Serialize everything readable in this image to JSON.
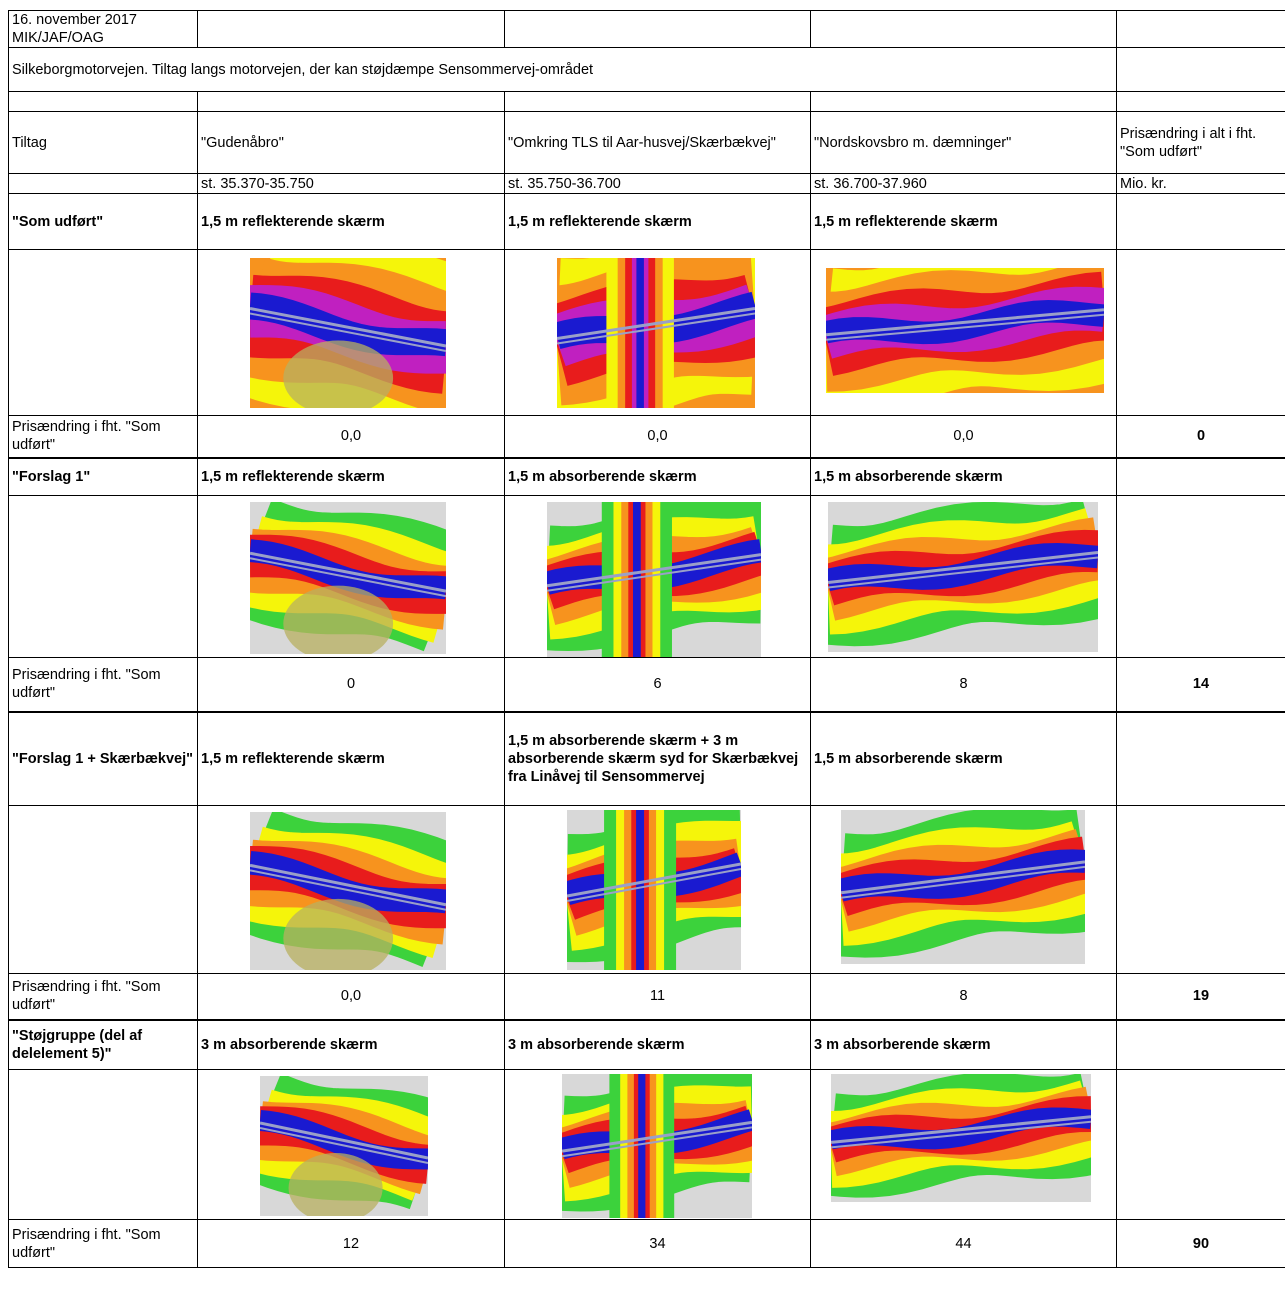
{
  "header": {
    "date_line": "16. november 2017 MIK/JAF/OAG",
    "title": "Silkeborgmotorvejen. Tiltag langs motorvejen, der kan støjdæmpe Sensommervej-området"
  },
  "columns": {
    "tiltag": "Tiltag",
    "c1": "\"Gudenåbro\"",
    "c2": "\"Omkring TLS til Aar-husvej/Skærbækvej\"",
    "c3": "\"Nordskovsbro m. dæmninger\"",
    "total": "Prisændring i alt i fht. \"Som udført\""
  },
  "stations": {
    "c1": "st. 35.370-35.750",
    "c2": "st. 35.750-36.700",
    "c3": "st. 36.700-37.960",
    "total": "Mio. kr."
  },
  "row_label_price": "Prisændring i fht. \"Som udført\"",
  "sections": [
    {
      "name": "\"Som udført\"",
      "c1": "1,5 m reflekterende skærm",
      "c2": "1,5 m reflekterende skærm",
      "c3": "1,5 m reflekterende skærm",
      "p1": "0,0",
      "p2": "0,0",
      "p3": "0,0",
      "total": "0"
    },
    {
      "name": "\"Forslag 1\"",
      "c1": "1,5 m reflekterende skærm",
      "c2": "1,5 m absorberende skærm",
      "c3": "1,5 m absorberende skærm",
      "p1": "0",
      "p2": "6",
      "p3": "8",
      "total": "14"
    },
    {
      "name": "\"Forslag 1 + Skærbækvej\"",
      "c1": "1,5 m reflekterende skærm",
      "c2": "1,5 m absorberende skærm + 3 m absorberende skærm syd for Skærbækvej fra Linåvej til Sensommervej",
      "c3": "1,5 m absorberende skærm",
      "p1": "0,0",
      "p2": "11",
      "p3": "8",
      "total": "19"
    },
    {
      "name": "\"Støjgruppe (del af delelement 5)\"",
      "c1": "3 m absorberende skærm",
      "c2": "3 m absorberende skærm",
      "c3": "3 m absorberende skærm",
      "p1": "12",
      "p2": "34",
      "p3": "44",
      "total": "90"
    }
  ],
  "colors": {
    "road_blue": "#1a1ad0",
    "red": "#e81c1c",
    "orange": "#f7931e",
    "yellow": "#f5f50a",
    "green": "#3cd23c",
    "magenta": "#c020c0",
    "violet": "#8060e0",
    "olive": "#b8b060",
    "grey": "#d8d8d8"
  }
}
